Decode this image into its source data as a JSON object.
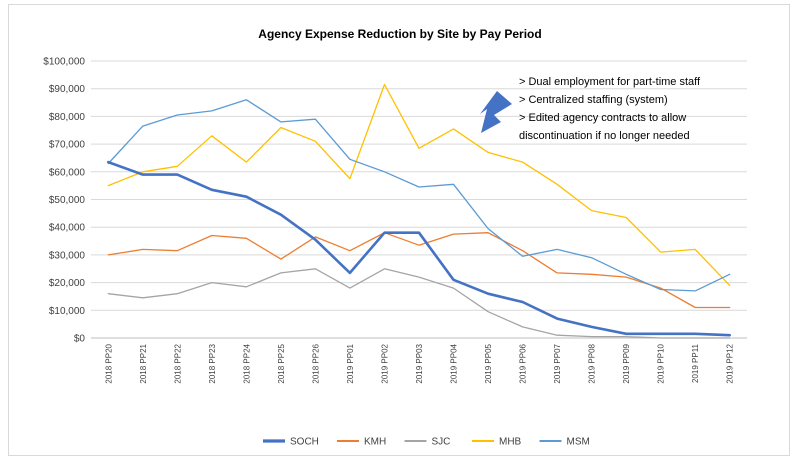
{
  "chart_data": {
    "type": "line",
    "title": "Agency Expense Reduction by Site by Pay Period",
    "xlabel": "",
    "ylabel": "",
    "ylim": [
      0,
      100000
    ],
    "yticks": [
      "$0",
      "$10,000",
      "$20,000",
      "$30,000",
      "$40,000",
      "$50,000",
      "$60,000",
      "$70,000",
      "$80,000",
      "$90,000",
      "$100,000"
    ],
    "grid": "horizontal",
    "legend_position": "bottom",
    "categories": [
      "2018 PP20",
      "2018 PP21",
      "2018 PP22",
      "2018 PP23",
      "2018 PP24",
      "2018 PP25",
      "2018 PP26",
      "2019 PP01",
      "2019 PP02",
      "2019 PP03",
      "2019 PP04",
      "2019 PP05",
      "2019 PP06",
      "2019 PP07",
      "2019 PP08",
      "2019 PP09",
      "2019 PP10",
      "2019 PP11",
      "2019 PP12"
    ],
    "series": [
      {
        "name": "SOCH",
        "color": "#4472c4",
        "width": 2.6,
        "values": [
          63500,
          59000,
          59000,
          53500,
          51000,
          44500,
          35500,
          23500,
          38000,
          38000,
          21000,
          16000,
          13000,
          7000,
          4000,
          1500,
          1500,
          1500,
          1000
        ]
      },
      {
        "name": "KMH",
        "color": "#ed7d31",
        "width": 1.3,
        "values": [
          30000,
          32000,
          31500,
          37000,
          36000,
          28500,
          36500,
          31500,
          38000,
          33500,
          37500,
          38000,
          31500,
          23500,
          23000,
          22000,
          18000,
          11000,
          11000
        ]
      },
      {
        "name": "SJC",
        "color": "#a5a5a5",
        "width": 1.3,
        "values": [
          16000,
          14500,
          16000,
          20000,
          18500,
          23500,
          25000,
          18000,
          25000,
          22000,
          18000,
          9500,
          4000,
          1000,
          500,
          500,
          0,
          0,
          0
        ]
      },
      {
        "name": "MHB",
        "color": "#ffc000",
        "width": 1.3,
        "values": [
          55000,
          60000,
          62000,
          73000,
          63500,
          76000,
          71000,
          57500,
          91500,
          68500,
          75500,
          67000,
          63500,
          55500,
          46000,
          43500,
          31000,
          32000,
          19000
        ]
      },
      {
        "name": "MSM",
        "color": "#5b9bd5",
        "width": 1.3,
        "values": [
          63000,
          76500,
          80500,
          82000,
          86000,
          78000,
          79000,
          64500,
          60000,
          54500,
          55500,
          39500,
          29500,
          32000,
          29000,
          23000,
          17500,
          17000,
          23000
        ]
      }
    ]
  },
  "annotation": {
    "lines": [
      "> Dual employment for part-time staff",
      "> Centralized staffing (system)",
      "> Edited agency contracts to allow",
      "discontinuation if no longer needed"
    ],
    "arrow_color": "#4472c4"
  },
  "colors": {
    "gridline": "#d9d9d9",
    "axis": "#bfbfbf"
  }
}
